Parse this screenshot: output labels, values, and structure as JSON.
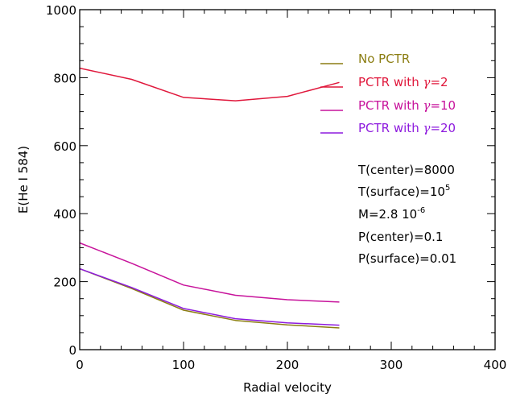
{
  "chart_data": {
    "type": "line",
    "xlabel": "Radial velocity",
    "ylabel": "E(He I 584)",
    "xlim": [
      0,
      400
    ],
    "ylim": [
      0,
      1000
    ],
    "xticks": [
      0,
      100,
      200,
      300,
      400
    ],
    "yticks": [
      0,
      200,
      400,
      600,
      800,
      1000
    ],
    "x_minor_step": 20,
    "y_minor_step": 50,
    "grid": false,
    "legend_position": "top-right",
    "series": [
      {
        "name": "No PCTR",
        "color": "#8b7d12",
        "x": [
          0,
          50,
          100,
          150,
          200,
          250
        ],
        "y": [
          238,
          180,
          116,
          86,
          73,
          64
        ]
      },
      {
        "name": "PCTR with γ=2",
        "color": "#e0183c",
        "x": [
          0,
          50,
          100,
          150,
          200,
          250
        ],
        "y": [
          828,
          795,
          742,
          732,
          745,
          786
        ]
      },
      {
        "name": "PCTR with γ=10",
        "color": "#c7139b",
        "x": [
          0,
          50,
          100,
          150,
          200,
          250
        ],
        "y": [
          314,
          254,
          190,
          160,
          147,
          140
        ]
      },
      {
        "name": "PCTR with γ=20",
        "color": "#8e1bde",
        "x": [
          0,
          50,
          100,
          150,
          200,
          250
        ],
        "y": [
          238,
          183,
          121,
          91,
          79,
          72
        ]
      }
    ],
    "legend": [
      {
        "prefix": "No PCTR",
        "greek": "",
        "suffix": ""
      },
      {
        "prefix": "PCTR with ",
        "greek": "γ",
        "suffix": "=2"
      },
      {
        "prefix": "PCTR with ",
        "greek": "γ",
        "suffix": "=10"
      },
      {
        "prefix": "PCTR with ",
        "greek": "γ",
        "suffix": "=20"
      }
    ],
    "annotations": [
      {
        "text": "T(center)=8000",
        "sup": ""
      },
      {
        "text": "T(surface)=10",
        "sup": "5"
      },
      {
        "text": "M=2.8  10",
        "sup": "-6"
      },
      {
        "text": "P(center)=0.1",
        "sup": ""
      },
      {
        "text": "P(surface)=0.01",
        "sup": ""
      }
    ]
  }
}
